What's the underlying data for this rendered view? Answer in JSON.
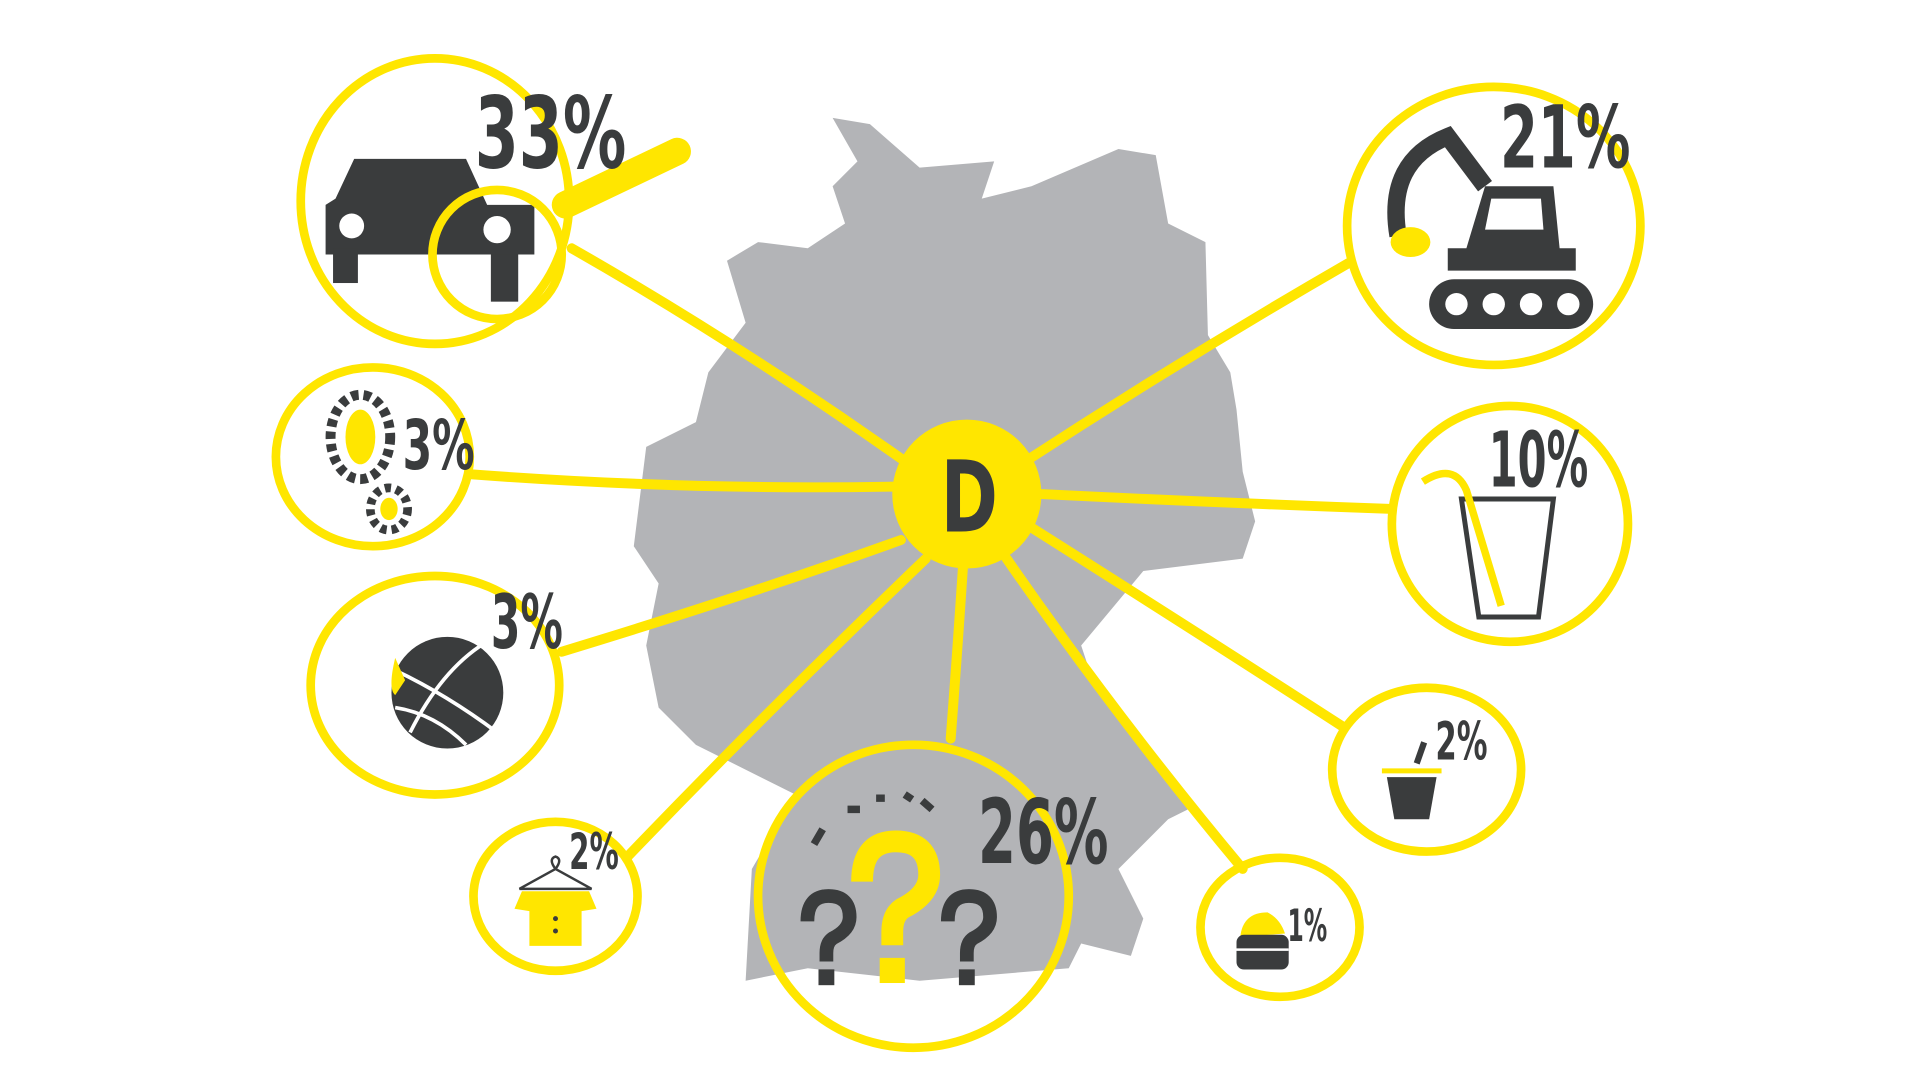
{
  "colors": {
    "accent": "#ffe600",
    "map": "#b3b4b7",
    "icon": "#3a3c3d",
    "background": "#ffffff"
  },
  "hub": {
    "label": "D"
  },
  "categories": [
    {
      "icon": "car-icon",
      "value": "33%"
    },
    {
      "icon": "excavator-icon",
      "value": "21%"
    },
    {
      "icon": "footprints-icon",
      "value": "3%"
    },
    {
      "icon": "drinking-glass-icon",
      "value": "10%"
    },
    {
      "icon": "basketball-icon",
      "value": "3%"
    },
    {
      "icon": "cup-with-straw-icon",
      "value": "2%"
    },
    {
      "icon": "shirt-on-hanger-icon",
      "value": "2%"
    },
    {
      "icon": "question-marks-icon",
      "value": "26%"
    },
    {
      "icon": "cream-jar-icon",
      "value": "1%"
    }
  ]
}
